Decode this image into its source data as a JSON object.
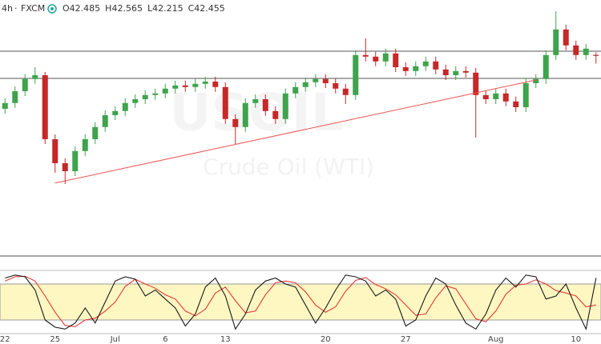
{
  "chart_data": {
    "type": "candlestick",
    "header": {
      "interval": "4h",
      "source": "FXCM",
      "legend": [
        {
          "label": "O",
          "value": 42.485
        },
        {
          "label": "H",
          "value": 42.565
        },
        {
          "label": "L",
          "value": 42.215
        },
        {
          "label": "C",
          "value": 42.455
        }
      ]
    },
    "watermark": {
      "symbol": "USOIL",
      "description": "Crude Oil (WTI)"
    },
    "categories": [
      "22",
      null,
      null,
      null,
      null,
      "25",
      null,
      null,
      null,
      null,
      null,
      "Jul",
      null,
      null,
      null,
      null,
      "6",
      null,
      null,
      null,
      null,
      null,
      "13",
      null,
      null,
      null,
      null,
      null,
      null,
      null,
      null,
      null,
      "20",
      null,
      null,
      null,
      null,
      null,
      null,
      null,
      "27",
      null,
      null,
      null,
      null,
      null,
      null,
      null,
      null,
      "Aug",
      null,
      null,
      null,
      null,
      null,
      null,
      null,
      "10",
      null,
      null
    ],
    "open": [
      40.8,
      40.98,
      41.35,
      41.73,
      41.85,
      39.85,
      39.1,
      38.85,
      39.48,
      39.85,
      40.23,
      40.6,
      40.73,
      40.98,
      41.1,
      41.23,
      41.28,
      41.43,
      41.53,
      41.48,
      41.58,
      41.65,
      41.48,
      40.48,
      40.23,
      40.98,
      41.1,
      40.73,
      40.48,
      41.28,
      41.48,
      41.63,
      41.73,
      41.6,
      41.43,
      41.23,
      42.48,
      42.43,
      42.28,
      42.53,
      42.1,
      41.98,
      42.13,
      42.28,
      42.03,
      41.85,
      41.98,
      41.93,
      41.23,
      41.1,
      41.28,
      41.03,
      40.85,
      41.6,
      41.73,
      42.48,
      43.28,
      42.78,
      42.48,
      42.485
    ],
    "high": [
      41.13,
      41.5,
      41.88,
      42.1,
      41.95,
      40.0,
      39.25,
      39.63,
      40.0,
      40.38,
      40.75,
      40.88,
      41.13,
      41.25,
      41.38,
      41.43,
      41.58,
      41.68,
      41.68,
      41.73,
      41.8,
      41.8,
      41.63,
      40.63,
      41.13,
      41.25,
      41.25,
      40.88,
      41.43,
      41.63,
      41.78,
      41.88,
      41.88,
      41.75,
      41.58,
      42.63,
      43.0,
      42.58,
      42.68,
      42.68,
      42.25,
      42.28,
      42.43,
      42.43,
      42.18,
      42.13,
      42.13,
      42.08,
      41.38,
      41.43,
      41.43,
      41.18,
      41.75,
      41.88,
      42.63,
      43.85,
      43.43,
      42.93,
      42.83,
      42.565
    ],
    "low": [
      40.65,
      40.83,
      41.2,
      41.58,
      39.7,
      38.8,
      38.45,
      38.7,
      39.33,
      39.7,
      40.08,
      40.45,
      40.58,
      40.83,
      40.95,
      41.08,
      41.13,
      41.28,
      41.33,
      41.33,
      41.43,
      41.33,
      40.33,
      39.7,
      40.08,
      40.83,
      40.58,
      40.33,
      40.33,
      41.13,
      41.33,
      41.48,
      41.45,
      41.28,
      40.95,
      41.08,
      42.28,
      42.13,
      42.13,
      41.95,
      41.83,
      41.83,
      41.98,
      41.88,
      41.7,
      41.7,
      41.78,
      39.9,
      40.95,
      40.95,
      40.88,
      40.7,
      40.7,
      41.45,
      41.58,
      42.33,
      42.63,
      42.33,
      42.33,
      42.215
    ],
    "close": [
      40.98,
      41.35,
      41.73,
      41.85,
      39.85,
      39.1,
      38.85,
      39.48,
      39.85,
      40.23,
      40.6,
      40.73,
      40.98,
      41.1,
      41.23,
      41.28,
      41.43,
      41.53,
      41.48,
      41.58,
      41.65,
      41.48,
      40.48,
      40.23,
      40.98,
      41.1,
      40.73,
      40.48,
      41.28,
      41.48,
      41.63,
      41.73,
      41.6,
      41.43,
      41.23,
      42.48,
      42.43,
      42.28,
      42.53,
      42.1,
      41.98,
      42.13,
      42.28,
      42.03,
      41.85,
      41.98,
      41.93,
      41.23,
      41.1,
      41.28,
      41.03,
      40.85,
      41.6,
      41.73,
      42.48,
      43.28,
      42.78,
      42.48,
      42.68,
      42.455
    ],
    "up_color": "#3fa34d",
    "down_color": "#c62828",
    "ylim": [
      36.2,
      44.2
    ],
    "levels": [
      42.6,
      41.75
    ],
    "level_color": "#555555",
    "trendline": {
      "from": {
        "index": 5,
        "value": 38.48
      },
      "to": {
        "index": 53,
        "value": 41.7
      },
      "color": "#ef5350"
    },
    "stochastic": {
      "ylim": [
        0,
        100
      ],
      "band": [
        20,
        80
      ],
      "band_color": "#fff7c2",
      "series": [
        {
          "color": "#1a1a1a",
          "values": [
            90,
            95,
            92,
            70,
            20,
            8,
            5,
            15,
            40,
            15,
            50,
            85,
            92,
            88,
            60,
            70,
            55,
            40,
            10,
            30,
            75,
            90,
            60,
            5,
            30,
            70,
            85,
            90,
            80,
            75,
            45,
            15,
            40,
            70,
            95,
            92,
            85,
            60,
            70,
            55,
            10,
            20,
            60,
            90,
            80,
            45,
            15,
            5,
            30,
            70,
            90,
            75,
            95,
            92,
            55,
            60,
            80,
            40,
            5,
            90
          ]
        },
        {
          "color": "#e53935",
          "values": [
            85,
            92,
            93,
            85,
            60,
            33,
            11,
            9,
            20,
            23,
            35,
            50,
            76,
            88,
            80,
            73,
            62,
            55,
            35,
            27,
            38,
            65,
            75,
            52,
            32,
            35,
            62,
            82,
            85,
            82,
            67,
            45,
            33,
            42,
            68,
            86,
            91,
            79,
            72,
            62,
            45,
            28,
            30,
            57,
            77,
            72,
            47,
            22,
            17,
            35,
            63,
            78,
            80,
            87,
            80,
            69,
            65,
            60,
            42,
            45
          ]
        }
      ]
    }
  }
}
